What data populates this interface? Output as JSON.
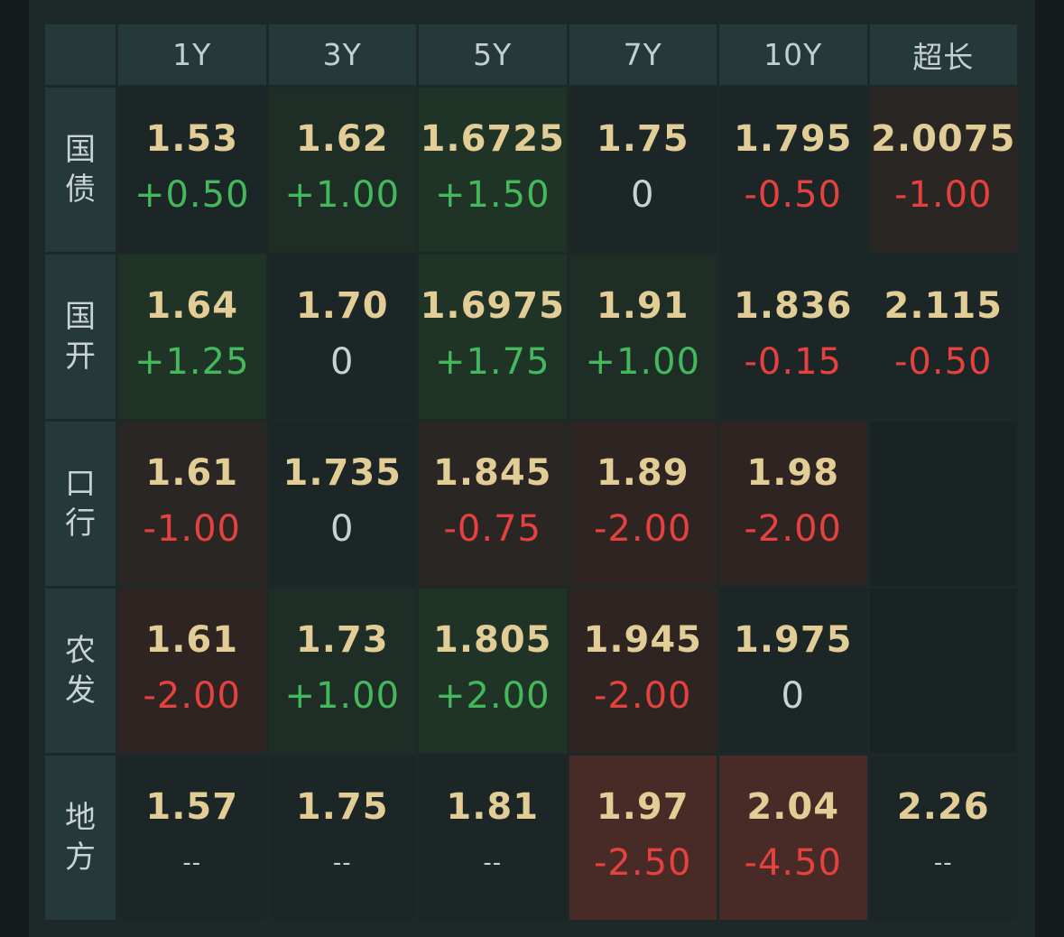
{
  "columns": [
    "1Y",
    "3Y",
    "5Y",
    "7Y",
    "10Y",
    "超长"
  ],
  "rows": [
    {
      "label": [
        "国",
        "债"
      ],
      "cells": [
        {
          "value": "1.53",
          "change": "+0.50",
          "dir": "up",
          "shade": "neutral"
        },
        {
          "value": "1.62",
          "change": "+1.00",
          "dir": "up",
          "shade": "g1"
        },
        {
          "value": "1.6725",
          "change": "+1.50",
          "dir": "up",
          "shade": "g2"
        },
        {
          "value": "1.75",
          "change": "0",
          "dir": "flat",
          "shade": "neutral"
        },
        {
          "value": "1.795",
          "change": "-0.50",
          "dir": "down",
          "shade": "neutral"
        },
        {
          "value": "2.0075",
          "change": "-1.00",
          "dir": "down",
          "shade": "r1"
        }
      ]
    },
    {
      "label": [
        "国",
        "开"
      ],
      "cells": [
        {
          "value": "1.64",
          "change": "+1.25",
          "dir": "up",
          "shade": "g2"
        },
        {
          "value": "1.70",
          "change": "0",
          "dir": "flat",
          "shade": "neutral"
        },
        {
          "value": "1.6975",
          "change": "+1.75",
          "dir": "up",
          "shade": "g2"
        },
        {
          "value": "1.91",
          "change": "+1.00",
          "dir": "up",
          "shade": "g1"
        },
        {
          "value": "1.836",
          "change": "-0.15",
          "dir": "down",
          "shade": "neutral"
        },
        {
          "value": "2.115",
          "change": "-0.50",
          "dir": "down",
          "shade": "neutral"
        }
      ]
    },
    {
      "label": [
        "口",
        "行"
      ],
      "cells": [
        {
          "value": "1.61",
          "change": "-1.00",
          "dir": "down",
          "shade": "r1"
        },
        {
          "value": "1.735",
          "change": "0",
          "dir": "flat",
          "shade": "neutral"
        },
        {
          "value": "1.845",
          "change": "-0.75",
          "dir": "down",
          "shade": "r1"
        },
        {
          "value": "1.89",
          "change": "-2.00",
          "dir": "down",
          "shade": "r2"
        },
        {
          "value": "1.98",
          "change": "-2.00",
          "dir": "down",
          "shade": "r2"
        },
        {
          "value": "",
          "change": "",
          "dir": "none",
          "shade": "empty"
        }
      ]
    },
    {
      "label": [
        "农",
        "发"
      ],
      "cells": [
        {
          "value": "1.61",
          "change": "-2.00",
          "dir": "down",
          "shade": "r2"
        },
        {
          "value": "1.73",
          "change": "+1.00",
          "dir": "up",
          "shade": "g1"
        },
        {
          "value": "1.805",
          "change": "+2.00",
          "dir": "up",
          "shade": "g2"
        },
        {
          "value": "1.945",
          "change": "-2.00",
          "dir": "down",
          "shade": "r2"
        },
        {
          "value": "1.975",
          "change": "0",
          "dir": "flat",
          "shade": "neutral"
        },
        {
          "value": "",
          "change": "",
          "dir": "none",
          "shade": "empty"
        }
      ]
    },
    {
      "label": [
        "地",
        "方"
      ],
      "cells": [
        {
          "value": "1.57",
          "change": "--",
          "dir": "none",
          "shade": "neutral"
        },
        {
          "value": "1.75",
          "change": "--",
          "dir": "none",
          "shade": "neutral"
        },
        {
          "value": "1.81",
          "change": "--",
          "dir": "none",
          "shade": "neutral"
        },
        {
          "value": "1.97",
          "change": "-2.50",
          "dir": "down",
          "shade": "r3"
        },
        {
          "value": "2.04",
          "change": "-4.50",
          "dir": "down",
          "shade": "r3"
        },
        {
          "value": "2.26",
          "change": "--",
          "dir": "none",
          "shade": "neutral"
        }
      ]
    }
  ],
  "colors": {
    "up": "#43b95b",
    "down": "#e5413e",
    "value": "#e3cd96",
    "header_bg": "#25393b",
    "page_bg": "#151b1c"
  }
}
